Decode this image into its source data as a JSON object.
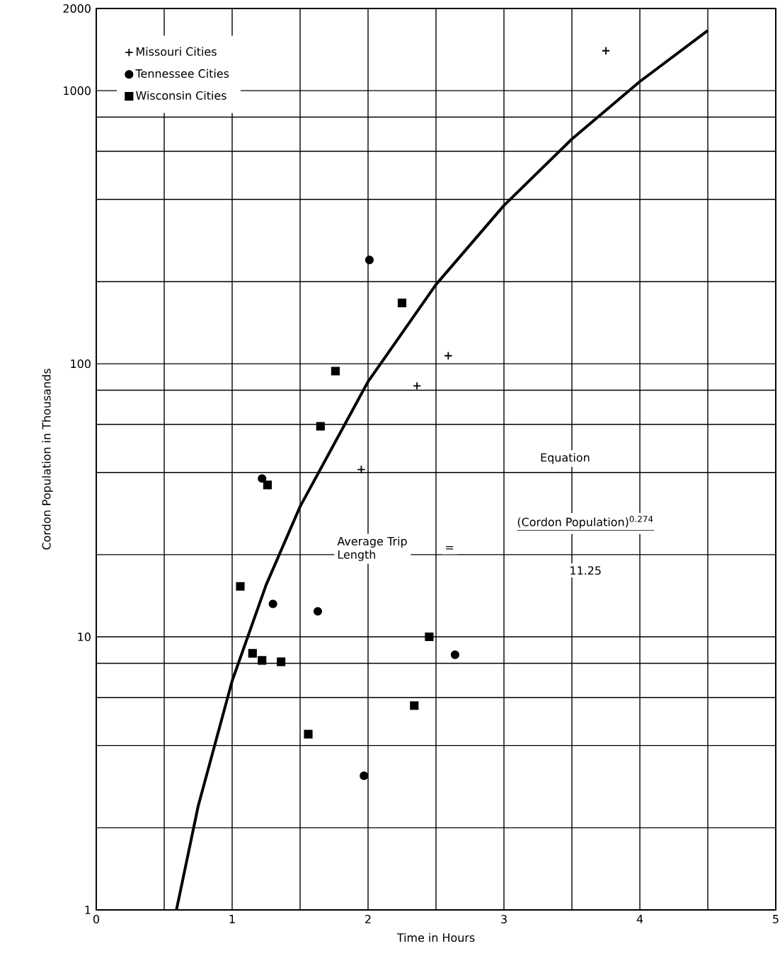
{
  "chart_data": {
    "type": "scatter",
    "xlabel": "Time in Hours",
    "ylabel": "Cordon Population in Thousands",
    "xlim": [
      0,
      5
    ],
    "ylim": [
      1,
      2000
    ],
    "log": "y",
    "grid": true,
    "legend": "top left",
    "xticks": [
      0,
      {
        "value": 0.5,
        "label": null
      },
      1,
      {
        "value": 1.5,
        "label": null
      },
      2,
      {
        "value": 2.5,
        "label": null
      },
      3,
      {
        "value": 3.5,
        "label": null
      },
      4,
      {
        "value": 4.5,
        "label": null
      },
      5
    ],
    "yticks": [
      1,
      {
        "value": 2,
        "label": null
      },
      {
        "value": 4,
        "label": null
      },
      {
        "value": 6,
        "label": null
      },
      {
        "value": 8,
        "label": null
      },
      10,
      {
        "value": 20,
        "label": null
      },
      {
        "value": 40,
        "label": null
      },
      {
        "value": 60,
        "label": null
      },
      {
        "value": 80,
        "label": null
      },
      100,
      {
        "value": 200,
        "label": null
      },
      {
        "value": 400,
        "label": null
      },
      {
        "value": 600,
        "label": null
      },
      {
        "value": 800,
        "label": null
      },
      1000,
      2000
    ],
    "series": [
      {
        "name": "Missouri Cities",
        "color": "#000000",
        "marker": "cross",
        "x": [
          3.75,
          2.59,
          2.36,
          1.95
        ],
        "values": [
          1400,
          107,
          83,
          41
        ]
      },
      {
        "name": "Tennessee Cities",
        "color": "#000000",
        "marker": "circle",
        "x": [
          2.01,
          1.22,
          1.3,
          1.63,
          2.64,
          1.97
        ],
        "values": [
          240,
          38,
          13.2,
          12.4,
          8.6,
          3.1
        ]
      },
      {
        "name": "Wisconsin Cities",
        "color": "#000000",
        "marker": "square",
        "x": [
          2.25,
          1.76,
          1.65,
          1.26,
          1.06,
          1.15,
          1.22,
          1.36,
          2.45,
          2.34,
          1.56
        ],
        "values": [
          167,
          94,
          59,
          36,
          15.3,
          8.7,
          8.2,
          8.1,
          10,
          5.6,
          4.4
        ]
      },
      {
        "type": "line",
        "color": "#000000",
        "marker": "none",
        "x": [
          0.59,
          0.75,
          1,
          1.25,
          1.5,
          2,
          2.5,
          3,
          3.5,
          4,
          4.5
        ],
        "values": [
          1.0,
          2.4,
          6.9,
          15.5,
          30,
          86,
          195,
          380,
          665,
          1080,
          1660
        ]
      }
    ],
    "annotations": [
      "Equation",
      "Average Trip Length",
      "=",
      "(Cordon Population)$^{0.274}$",
      "11.25"
    ]
  }
}
